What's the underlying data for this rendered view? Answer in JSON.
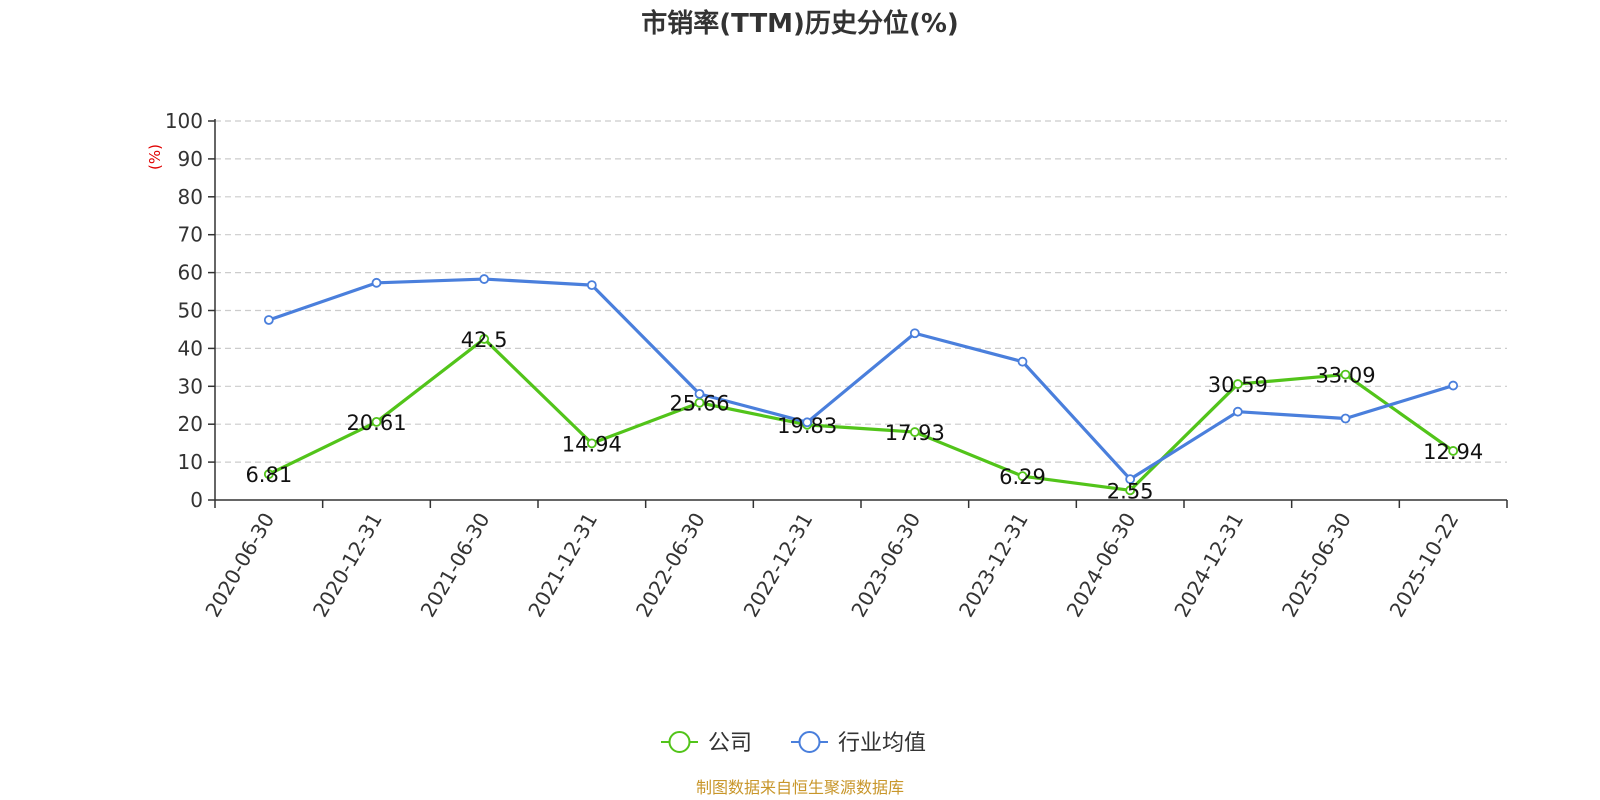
{
  "colors": {
    "company": "#52c41a",
    "industry": "#4a7fdc",
    "unit": "#e00000",
    "source": "#c8962a",
    "grid": "#cccccc",
    "axis": "#333333"
  },
  "chart_data": {
    "type": "line",
    "title": "市销率(TTM)历史分位(%)",
    "ylabel": "(%)",
    "ylim": [
      0,
      100
    ],
    "yticks": [
      0,
      10,
      20,
      30,
      40,
      50,
      60,
      70,
      80,
      90,
      100
    ],
    "grid": true,
    "legend_position": "bottom-center",
    "categories": [
      "2020-06-30",
      "2020-12-31",
      "2021-06-30",
      "2021-12-31",
      "2022-06-30",
      "2022-12-31",
      "2023-06-30",
      "2023-12-31",
      "2024-06-30",
      "2024-12-31",
      "2025-06-30",
      "2025-10-22"
    ],
    "series": [
      {
        "name": "公司",
        "values": [
          6.81,
          20.61,
          42.5,
          14.94,
          25.66,
          19.83,
          17.93,
          6.29,
          2.55,
          30.59,
          33.09,
          12.94
        ],
        "labels": [
          "6.81",
          "20.61",
          "42.5",
          "14.94",
          "25.66",
          "19.83",
          "17.93",
          "6.29",
          "2.55",
          "30.59",
          "33.09",
          "12.94"
        ]
      },
      {
        "name": "行业均值",
        "values": [
          47.5,
          57.3,
          58.3,
          56.7,
          28.0,
          20.5,
          44.0,
          36.5,
          5.5,
          23.3,
          21.5,
          30.2
        ]
      }
    ]
  },
  "footer": {
    "source": "制图数据来自恒生聚源数据库"
  }
}
